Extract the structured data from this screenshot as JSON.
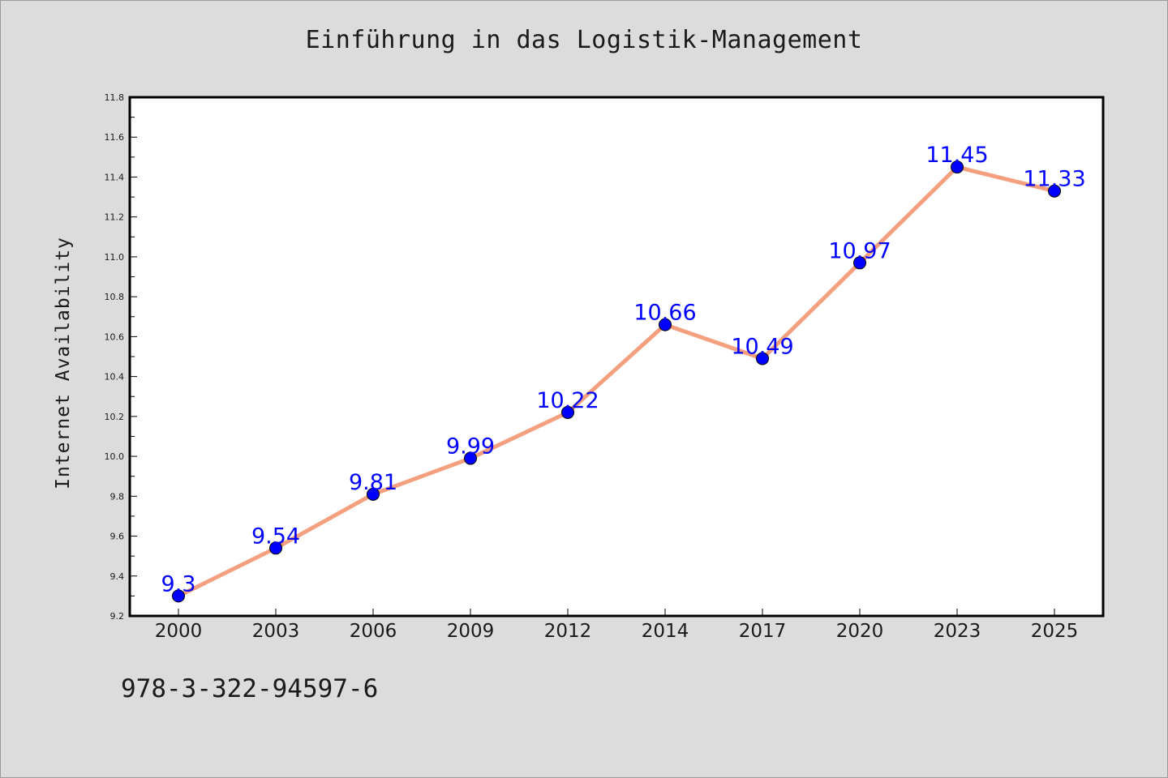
{
  "chart_data": {
    "type": "line",
    "title": "Einführung in das Logistik-Management",
    "xlabel": "",
    "ylabel": "Internet Availability",
    "categories": [
      "2000",
      "2003",
      "2006",
      "2009",
      "2012",
      "2014",
      "2017",
      "2020",
      "2023",
      "2025"
    ],
    "series": [
      {
        "values": [
          9.3,
          9.54,
          9.81,
          9.99,
          10.22,
          10.66,
          10.49,
          10.97,
          11.45,
          11.33
        ],
        "data_labels": [
          "9.3",
          "9.54",
          "9.81",
          "9.99",
          "10.22",
          "10.66",
          "10.49",
          "10.97",
          "11.45",
          "11.33"
        ]
      }
    ],
    "ylim": [
      9.2,
      11.8
    ],
    "yticks": [
      "9.2",
      "9.4",
      "9.6",
      "9.8",
      "10.0",
      "10.2",
      "10.4",
      "10.6",
      "10.8",
      "11.0",
      "11.2",
      "11.4",
      "11.6",
      "11.8"
    ],
    "grid": false,
    "colors": {
      "line": "#f4a07e",
      "marker": "#0000ff",
      "data_label": "#0000ff",
      "background": "#dcdcdc",
      "plot_area": "#ffffff"
    }
  },
  "footer": {
    "isbn": "978-3-322-94597-6"
  }
}
